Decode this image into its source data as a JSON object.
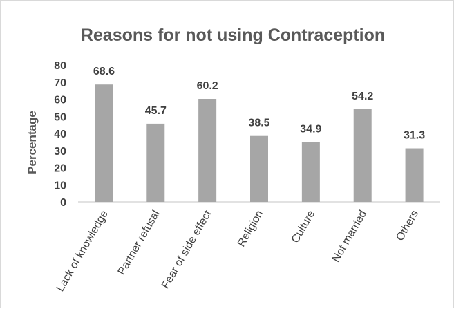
{
  "chart_data": {
    "type": "bar",
    "title": "Reasons for not using Contraception",
    "xlabel": "",
    "ylabel": "Percentage",
    "categories": [
      "Lack of knowledge",
      "Partner refusal",
      "Fear of side effect",
      "Religion",
      "Culture",
      "Not married",
      "Others"
    ],
    "values": [
      68.6,
      45.7,
      60.2,
      38.5,
      34.9,
      54.2,
      31.3
    ],
    "data_labels": [
      "68.6",
      "45.7",
      "60.2",
      "38.5",
      "34.9",
      "54.2",
      "31.3"
    ],
    "ylim": [
      0,
      80
    ],
    "yticks": [
      "0",
      "10",
      "20",
      "30",
      "40",
      "50",
      "60",
      "70",
      "80"
    ],
    "grid": false,
    "legend": "none",
    "colors": {
      "bar": "#a6a6a6",
      "axis": "#d9d9d9",
      "text": "#595959"
    }
  }
}
